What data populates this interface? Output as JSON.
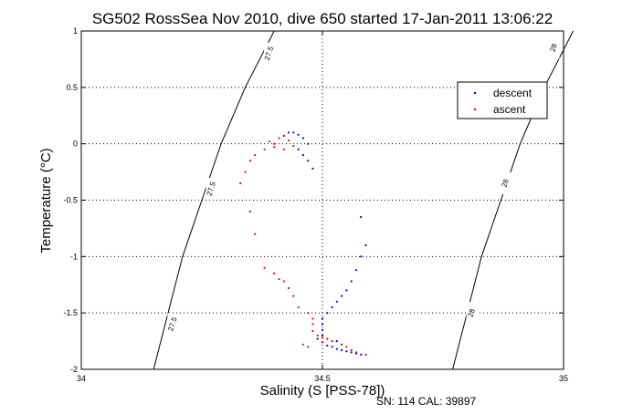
{
  "chart_data": {
    "type": "scatter",
    "title": "SG502 RossSea Nov 2010, dive 650 started 17-Jan-2011 13:06:22",
    "xlabel": "Salinity (S [PSS-78])",
    "ylabel": "Temperature (°C)",
    "xlim": [
      34,
      35
    ],
    "ylim": [
      -2,
      1
    ],
    "xticks": [
      "34",
      "34.5",
      "35"
    ],
    "yticks": [
      "-2",
      "-1.5",
      "-1",
      "-0.5",
      "0",
      "0.5",
      "1"
    ],
    "grid": "dotted",
    "legend_position": "upper-right",
    "footer": "SN: 114  CAL: 39897",
    "contours": [
      {
        "label": "27.5",
        "points": [
          [
            34.15,
            -2
          ],
          [
            34.18,
            -1.5
          ],
          [
            34.21,
            -1
          ],
          [
            34.25,
            -0.5
          ],
          [
            34.29,
            0
          ],
          [
            34.34,
            0.5
          ],
          [
            34.4,
            1
          ]
        ],
        "label_positions": [
          [
            34.19,
            -1.6
          ],
          [
            34.27,
            -0.4
          ],
          [
            34.39,
            0.8
          ]
        ]
      },
      {
        "label": "28",
        "points": [
          [
            34.77,
            -2
          ],
          [
            34.8,
            -1.5
          ],
          [
            34.83,
            -1
          ],
          [
            34.87,
            -0.5
          ],
          [
            34.91,
            0
          ],
          [
            34.96,
            0.5
          ],
          [
            35.02,
            1
          ]
        ],
        "label_positions": [
          [
            34.81,
            -1.5
          ],
          [
            34.88,
            -0.35
          ],
          [
            34.98,
            0.85
          ]
        ]
      }
    ],
    "series": [
      {
        "name": "descent",
        "color": "#0000ff",
        "points": [
          [
            34.58,
            -1.87
          ],
          [
            34.57,
            -1.86
          ],
          [
            34.56,
            -1.85
          ],
          [
            34.55,
            -1.84
          ],
          [
            34.54,
            -1.83
          ],
          [
            34.53,
            -1.82
          ],
          [
            34.52,
            -1.8
          ],
          [
            34.51,
            -1.79
          ],
          [
            34.5,
            -1.76
          ],
          [
            34.49,
            -1.73
          ],
          [
            34.5,
            -1.7
          ],
          [
            34.5,
            -1.65
          ],
          [
            34.5,
            -1.6
          ],
          [
            34.5,
            -1.55
          ],
          [
            34.51,
            -1.5
          ],
          [
            34.52,
            -1.45
          ],
          [
            34.53,
            -1.4
          ],
          [
            34.54,
            -1.35
          ],
          [
            34.55,
            -1.3
          ],
          [
            34.56,
            -1.22
          ],
          [
            34.57,
            -1.12
          ],
          [
            34.58,
            -1.0
          ],
          [
            34.59,
            -0.9
          ],
          [
            34.58,
            -0.65
          ],
          [
            34.47,
            0.0
          ],
          [
            34.46,
            0.05
          ],
          [
            34.45,
            0.08
          ],
          [
            34.44,
            0.1
          ],
          [
            34.43,
            0.1
          ],
          [
            34.42,
            0.07
          ],
          [
            34.45,
            -0.05
          ],
          [
            34.46,
            -0.1
          ],
          [
            34.47,
            -0.15
          ],
          [
            34.48,
            -0.22
          ],
          [
            34.53,
            -1.75
          ],
          [
            34.54,
            -1.78
          ]
        ]
      },
      {
        "name": "ascent",
        "color": "#ff0000",
        "points": [
          [
            34.59,
            -1.87
          ],
          [
            34.57,
            -1.85
          ],
          [
            34.56,
            -1.83
          ],
          [
            34.55,
            -1.8
          ],
          [
            34.54,
            -1.78
          ],
          [
            34.52,
            -1.75
          ],
          [
            34.51,
            -1.73
          ],
          [
            34.5,
            -1.72
          ],
          [
            34.49,
            -1.7
          ],
          [
            34.48,
            -1.66
          ],
          [
            34.48,
            -1.6
          ],
          [
            34.48,
            -1.55
          ],
          [
            34.47,
            -1.5
          ],
          [
            34.45,
            -1.45
          ],
          [
            34.44,
            -1.35
          ],
          [
            34.43,
            -1.28
          ],
          [
            34.42,
            -1.22
          ],
          [
            34.41,
            -1.2
          ],
          [
            34.4,
            -1.15
          ],
          [
            34.38,
            -1.1
          ],
          [
            34.36,
            -0.8
          ],
          [
            34.35,
            -0.6
          ],
          [
            34.33,
            -0.35
          ],
          [
            34.34,
            -0.25
          ],
          [
            34.35,
            -0.15
          ],
          [
            34.36,
            -0.1
          ],
          [
            34.38,
            -0.05
          ],
          [
            34.4,
            0.0
          ],
          [
            34.41,
            0.05
          ],
          [
            34.42,
            0.07
          ],
          [
            34.43,
            0.03
          ],
          [
            34.44,
            -0.02
          ],
          [
            34.42,
            -0.05
          ],
          [
            34.4,
            -0.03
          ],
          [
            34.39,
            0.02
          ],
          [
            34.47,
            -1.8
          ],
          [
            34.46,
            -1.78
          ],
          [
            34.5,
            -1.76
          ]
        ]
      }
    ]
  }
}
